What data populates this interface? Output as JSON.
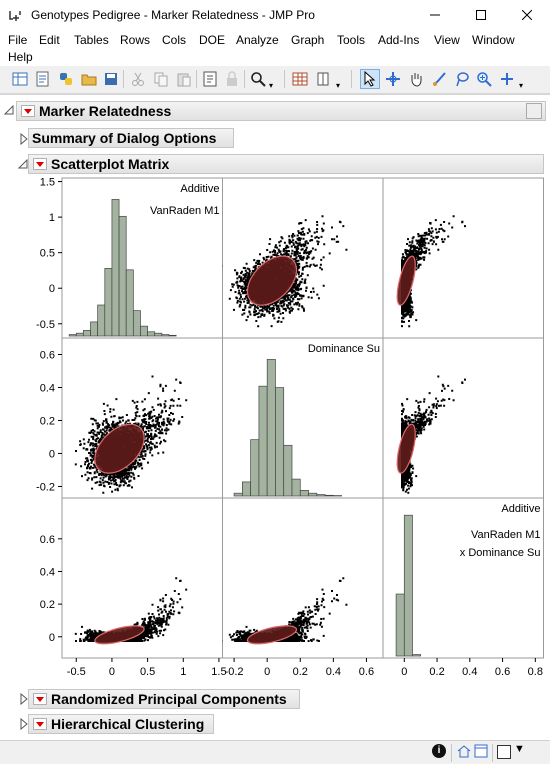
{
  "window": {
    "title": "Genotypes Pedigree - Marker Relatedness - JMP Pro",
    "controls": [
      "minimize-icon",
      "maximize-icon",
      "close-icon"
    ]
  },
  "menu": [
    "File",
    "Edit",
    "Tables",
    "Rows",
    "Cols",
    "DOE",
    "Analyze",
    "Graph",
    "Tools",
    "Add-Ins",
    "View",
    "Window",
    "Help"
  ],
  "toolbar": {
    "icons": [
      "new-data-table-icon",
      "new-script-icon",
      "python-icon",
      "open-icon",
      "save-icon",
      "cut-icon",
      "copy-icon",
      "paste-icon",
      "journal-icon",
      "lock-icon",
      "search-icon",
      "data-grid-icon",
      "column-icon",
      "arrow-tool-icon",
      "crosshair-tool-icon",
      "hand-tool-icon",
      "brush-tool-icon",
      "lasso-tool-icon",
      "magnifier-tool-icon",
      "add-tool-icon"
    ]
  },
  "report": {
    "title": "Marker Relatedness",
    "summary": "Summary of Dialog Options",
    "matrix": "Scatterplot Matrix",
    "rpc": "Randomized Principal Components",
    "hc": "Hierarchical Clustering"
  },
  "chart_data": {
    "type": "scatterplot-matrix",
    "variables": [
      "Additive VanRaden M1",
      "Dominance Su",
      "Additive VanRaden M1 x Dominance Su"
    ],
    "diagonal_labels": [
      [
        "Additive",
        "VanRaden M1"
      ],
      [
        "Dominance Su"
      ],
      [
        "Additive",
        "VanRaden M1",
        "x Dominance Su"
      ]
    ],
    "axes": [
      {
        "range": [
          -0.7,
          1.55
        ],
        "ticks": [
          1.5,
          1,
          0.5,
          0,
          -0.5
        ],
        "xticks": [
          -0.5,
          0,
          0.5,
          1,
          1.5
        ]
      },
      {
        "range": [
          -0.27,
          0.7
        ],
        "ticks": [
          0.6,
          0.4,
          0.2,
          0,
          -0.2
        ],
        "xticks": [
          -0.2,
          0,
          0.2,
          0.4,
          0.6
        ]
      },
      {
        "range": [
          -0.13,
          0.85
        ],
        "ticks": [
          0.6,
          0.4,
          0.2,
          0
        ],
        "xticks": [
          0,
          0.2,
          0.4,
          0.6,
          0.8
        ]
      }
    ],
    "histograms": [
      {
        "bins": [
          -0.6,
          -0.5,
          -0.4,
          -0.3,
          -0.2,
          -0.1,
          0,
          0.1,
          0.2,
          0.3,
          0.4,
          0.5,
          0.6,
          0.7,
          0.8
        ],
        "counts": [
          0.01,
          0.02,
          0.04,
          0.1,
          0.22,
          0.48,
          0.97,
          0.85,
          0.47,
          0.18,
          0.07,
          0.03,
          0.02,
          0.01,
          0.005
        ]
      },
      {
        "bins": [
          -0.2,
          -0.15,
          -0.1,
          -0.05,
          0,
          0.05,
          0.1,
          0.15,
          0.2,
          0.25,
          0.3,
          0.35,
          0.4
        ],
        "counts": [
          0.02,
          0.1,
          0.4,
          0.78,
          0.97,
          0.77,
          0.36,
          0.12,
          0.04,
          0.02,
          0.01,
          0.005,
          0.003
        ]
      },
      {
        "bins": [
          -0.05,
          0,
          0.05,
          0.1
        ],
        "counts": [
          0.44,
          1.0,
          0.01,
          0.0
        ]
      }
    ],
    "density_ellipse_color": "#5e1a1a",
    "histogram_fill": "#a3b3a0",
    "point_color": "#000000"
  }
}
